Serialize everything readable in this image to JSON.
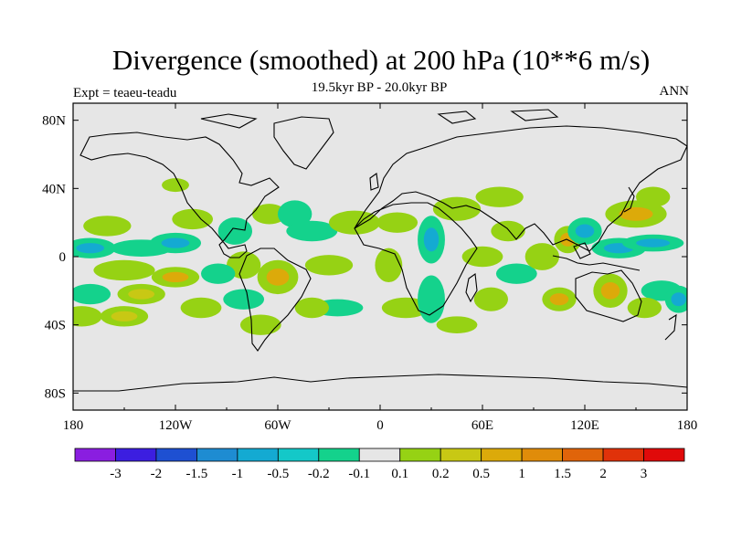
{
  "title": "Divergence (smoothed) at 200 hPa (10**6 m/s)",
  "subtitle": "19.5kyr BP - 20.0kyr BP",
  "experiment": "Expt = teaeu-teadu",
  "season": "ANN",
  "axes": {
    "lon_ticks": [
      "180",
      "120W",
      "60W",
      "0",
      "60E",
      "120E",
      "180"
    ],
    "lon_values": [
      -180,
      -120,
      -60,
      0,
      60,
      120,
      180
    ],
    "lat_ticks": [
      "80N",
      "40N",
      "0",
      "40S",
      "80S"
    ],
    "lat_values": [
      80,
      40,
      0,
      -40,
      -80
    ]
  },
  "colorbar": {
    "labels": [
      "-3",
      "-2",
      "-1.5",
      "-1",
      "-0.5",
      "-0.2",
      "-0.1",
      "0.1",
      "0.2",
      "0.5",
      "1",
      "1.5",
      "2",
      "3"
    ],
    "colors": [
      "#8a1ee0",
      "#3c1ee0",
      "#1e50d2",
      "#1e8cd2",
      "#14aad2",
      "#14c8c8",
      "#14d28c",
      "#e6e6e6",
      "#96d214",
      "#c8c814",
      "#dcaa0a",
      "#e08c0a",
      "#e0640a",
      "#e0320a",
      "#e00a0a"
    ]
  },
  "colors": {
    "background_field": "#e6e6e6",
    "pos_light": "#96d214",
    "pos_mid": "#c8c814",
    "pos_strong": "#dcaa0a",
    "neg_light": "#14d28c",
    "neg_mid": "#14c8c8",
    "neg_strong": "#14aad2"
  },
  "chart_data": {
    "type": "heatmap",
    "title": "Divergence (smoothed) at 200 hPa (10**6 m/s)",
    "subtitle": "19.5kyr BP - 20.0kyr BP",
    "projection": "cylindrical equidistant",
    "lon_range": [
      -180,
      180
    ],
    "lat_range": [
      -90,
      90
    ],
    "contour_levels": [
      -3,
      -2,
      -1.5,
      -1,
      -0.5,
      -0.2,
      -0.1,
      0.1,
      0.2,
      0.5,
      1,
      1.5,
      2,
      3
    ],
    "anomaly_blobs": [
      {
        "lon": -170,
        "lat": 5,
        "rx": 15,
        "ry": 6,
        "v": -0.3
      },
      {
        "lon": -140,
        "lat": 5,
        "rx": 18,
        "ry": 5,
        "v": -0.2
      },
      {
        "lon": -120,
        "lat": 8,
        "rx": 15,
        "ry": 6,
        "v": -0.3
      },
      {
        "lon": -160,
        "lat": 18,
        "rx": 14,
        "ry": 6,
        "v": 0.2
      },
      {
        "lon": -110,
        "lat": 22,
        "rx": 12,
        "ry": 6,
        "v": 0.2
      },
      {
        "lon": -150,
        "lat": -8,
        "rx": 18,
        "ry": 6,
        "v": 0.2
      },
      {
        "lon": -120,
        "lat": -12,
        "rx": 14,
        "ry": 6,
        "v": 0.3
      },
      {
        "lon": -170,
        "lat": -22,
        "rx": 12,
        "ry": 6,
        "v": -0.2
      },
      {
        "lon": -140,
        "lat": -22,
        "rx": 14,
        "ry": 6,
        "v": 0.25
      },
      {
        "lon": -175,
        "lat": -35,
        "rx": 12,
        "ry": 6,
        "v": 0.2
      },
      {
        "lon": -150,
        "lat": -35,
        "rx": 14,
        "ry": 6,
        "v": 0.25
      },
      {
        "lon": -105,
        "lat": -30,
        "rx": 12,
        "ry": 6,
        "v": 0.2
      },
      {
        "lon": -120,
        "lat": 42,
        "rx": 8,
        "ry": 4,
        "v": 0.2
      },
      {
        "lon": -85,
        "lat": 15,
        "rx": 10,
        "ry": 8,
        "v": -0.2
      },
      {
        "lon": -65,
        "lat": 25,
        "rx": 10,
        "ry": 6,
        "v": 0.2
      },
      {
        "lon": -50,
        "lat": 25,
        "rx": 10,
        "ry": 8,
        "v": -0.2
      },
      {
        "lon": -80,
        "lat": -5,
        "rx": 10,
        "ry": 8,
        "v": 0.2
      },
      {
        "lon": -60,
        "lat": -12,
        "rx": 12,
        "ry": 10,
        "v": 0.3
      },
      {
        "lon": -95,
        "lat": -10,
        "rx": 10,
        "ry": 6,
        "v": -0.2
      },
      {
        "lon": -80,
        "lat": -25,
        "rx": 12,
        "ry": 6,
        "v": -0.2
      },
      {
        "lon": -70,
        "lat": -40,
        "rx": 12,
        "ry": 6,
        "v": 0.2
      },
      {
        "lon": -40,
        "lat": 15,
        "rx": 15,
        "ry": 6,
        "v": -0.2
      },
      {
        "lon": -30,
        "lat": -5,
        "rx": 14,
        "ry": 6,
        "v": 0.2
      },
      {
        "lon": -15,
        "lat": 20,
        "rx": 15,
        "ry": 7,
        "v": 0.2
      },
      {
        "lon": -25,
        "lat": -30,
        "rx": 15,
        "ry": 5,
        "v": -0.2
      },
      {
        "lon": -40,
        "lat": -30,
        "rx": 10,
        "ry": 6,
        "v": 0.2
      },
      {
        "lon": 10,
        "lat": 20,
        "rx": 12,
        "ry": 6,
        "v": 0.2
      },
      {
        "lon": 5,
        "lat": -5,
        "rx": 8,
        "ry": 10,
        "v": 0.2
      },
      {
        "lon": 15,
        "lat": -30,
        "rx": 14,
        "ry": 6,
        "v": 0.2
      },
      {
        "lon": 30,
        "lat": 10,
        "rx": 8,
        "ry": 14,
        "v": -0.3
      },
      {
        "lon": 30,
        "lat": -25,
        "rx": 8,
        "ry": 14,
        "v": -0.2
      },
      {
        "lon": 45,
        "lat": 28,
        "rx": 14,
        "ry": 7,
        "v": 0.2
      },
      {
        "lon": 45,
        "lat": -40,
        "rx": 12,
        "ry": 5,
        "v": 0.2
      },
      {
        "lon": 60,
        "lat": 0,
        "rx": 12,
        "ry": 6,
        "v": 0.2
      },
      {
        "lon": 65,
        "lat": -25,
        "rx": 10,
        "ry": 7,
        "v": 0.2
      },
      {
        "lon": 75,
        "lat": 15,
        "rx": 10,
        "ry": 6,
        "v": 0.2
      },
      {
        "lon": 80,
        "lat": -10,
        "rx": 12,
        "ry": 6,
        "v": -0.2
      },
      {
        "lon": 70,
        "lat": 35,
        "rx": 14,
        "ry": 6,
        "v": 0.2
      },
      {
        "lon": 95,
        "lat": 0,
        "rx": 10,
        "ry": 8,
        "v": 0.2
      },
      {
        "lon": 105,
        "lat": -25,
        "rx": 10,
        "ry": 7,
        "v": 0.3
      },
      {
        "lon": 110,
        "lat": 10,
        "rx": 8,
        "ry": 8,
        "v": 0.3
      },
      {
        "lon": 120,
        "lat": 15,
        "rx": 10,
        "ry": 8,
        "v": -0.3
      },
      {
        "lon": 140,
        "lat": 5,
        "rx": 16,
        "ry": 6,
        "v": -0.4
      },
      {
        "lon": 160,
        "lat": 8,
        "rx": 18,
        "ry": 5,
        "v": -0.3
      },
      {
        "lon": 150,
        "lat": 25,
        "rx": 18,
        "ry": 8,
        "v": 0.3
      },
      {
        "lon": 160,
        "lat": 35,
        "rx": 10,
        "ry": 6,
        "v": 0.2
      },
      {
        "lon": 135,
        "lat": -20,
        "rx": 10,
        "ry": 10,
        "v": 0.3
      },
      {
        "lon": 165,
        "lat": -20,
        "rx": 12,
        "ry": 6,
        "v": -0.2
      },
      {
        "lon": 175,
        "lat": -25,
        "rx": 8,
        "ry": 8,
        "v": -0.3
      },
      {
        "lon": 155,
        "lat": -30,
        "rx": 10,
        "ry": 6,
        "v": 0.2
      }
    ]
  }
}
